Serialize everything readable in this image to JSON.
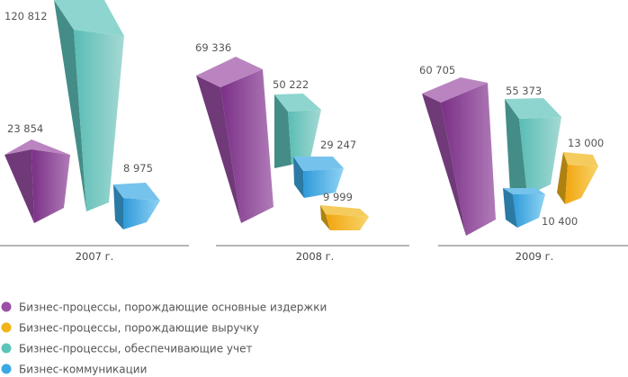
{
  "chart_data": {
    "type": "bar",
    "categories": [
      "2007 г.",
      "2008 г.",
      "2009 г."
    ],
    "series": [
      {
        "key": "costs",
        "name": "Бизнес-процессы, порождающие основные издержки",
        "color": "#9c4fa6",
        "values": [
          23854,
          69336,
          60705
        ],
        "labels": [
          "23 854",
          "69 336",
          "60 705"
        ]
      },
      {
        "key": "revenue",
        "name": "Бизнес-процессы, порождающие выручку",
        "color": "#f2b418",
        "values": [
          null,
          9999,
          13000
        ],
        "labels": [
          "",
          "9 999",
          "13 000"
        ]
      },
      {
        "key": "accounting",
        "name": "Бизнес-процессы, обеспечивающие учет",
        "color": "#5ec3bb",
        "values": [
          120812,
          50222,
          55373
        ],
        "labels": [
          "120 812",
          "50 222",
          "55 373"
        ]
      },
      {
        "key": "communications",
        "name": "Бизнес-коммуникации",
        "color": "#3aa9e4",
        "values": [
          8975,
          29247,
          10400
        ],
        "labels": [
          "8 975",
          "29 247",
          "10 400"
        ]
      }
    ]
  }
}
